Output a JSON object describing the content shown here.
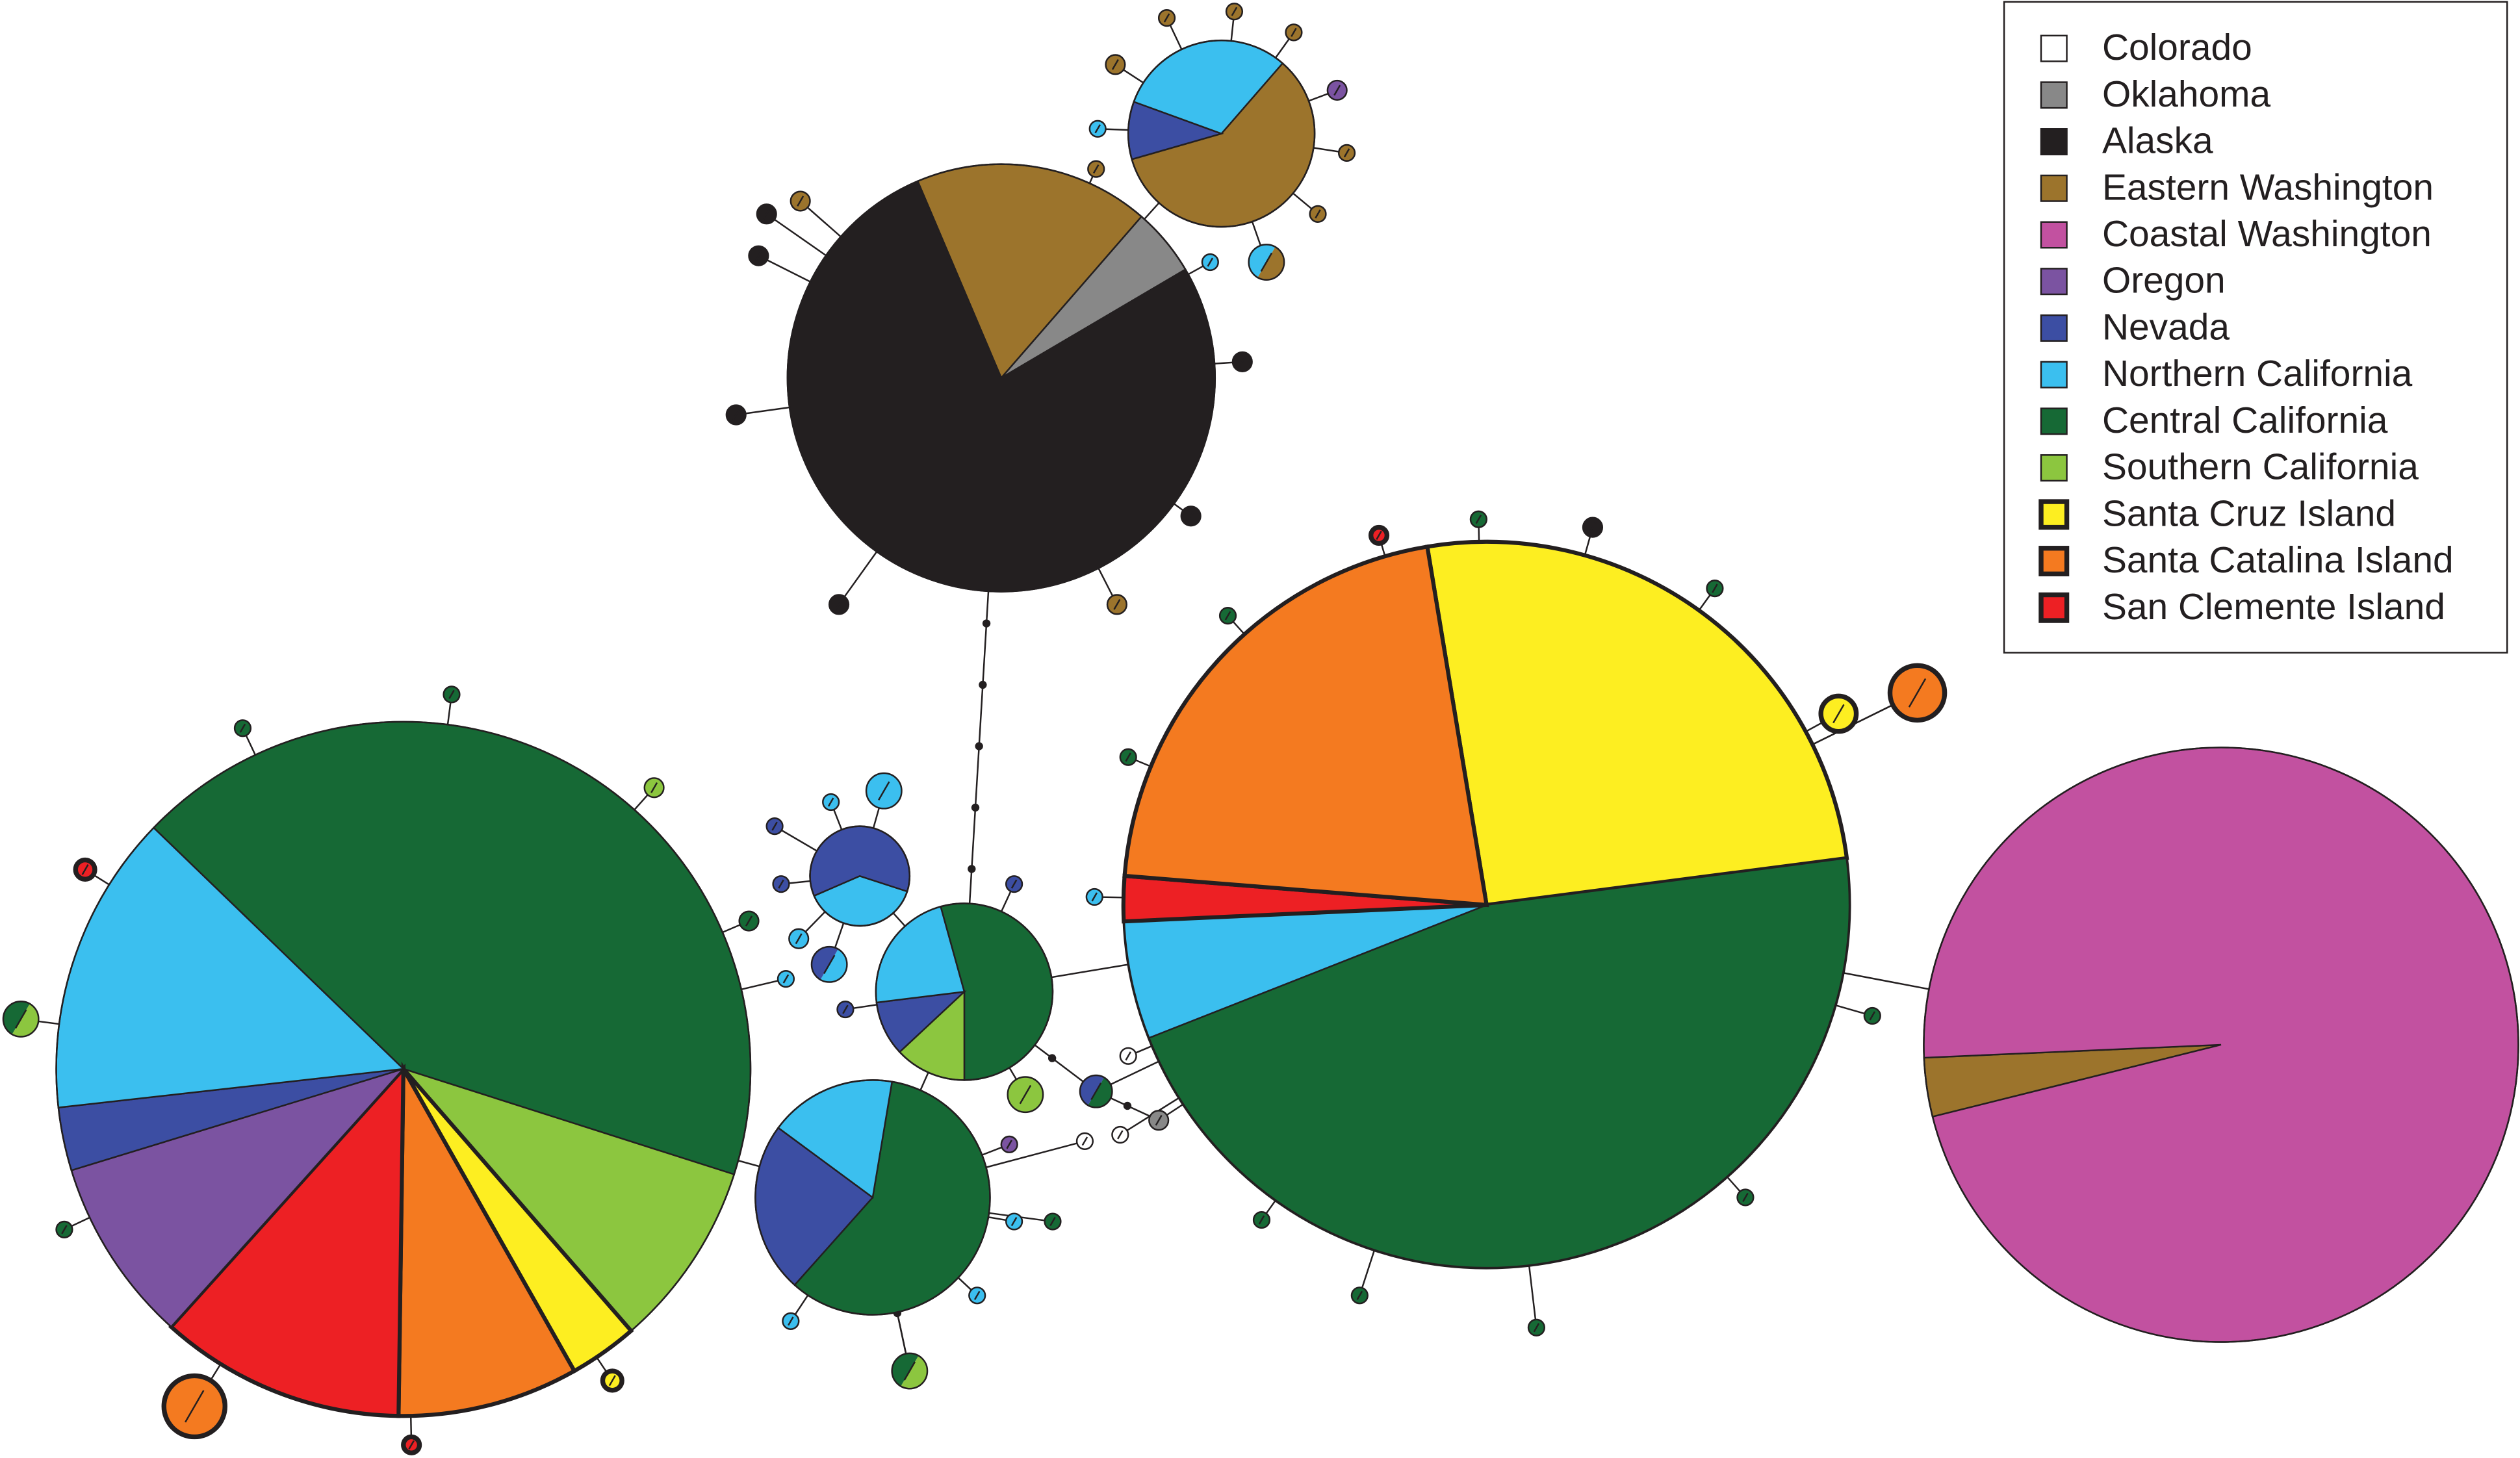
{
  "legend": {
    "items": [
      {
        "label": "Colorado",
        "color": "#ffffff",
        "outline": "thin"
      },
      {
        "label": "Oklahoma",
        "color": "#888888",
        "outline": "thin"
      },
      {
        "label": "Alaska",
        "color": "#231f20",
        "outline": "thin"
      },
      {
        "label": "Eastern Washington",
        "color": "#9c742c",
        "outline": "thin"
      },
      {
        "label": "Coastal Washington",
        "color": "#c251a0",
        "outline": "thin"
      },
      {
        "label": "Oregon",
        "color": "#7b53a1",
        "outline": "thin"
      },
      {
        "label": "Nevada",
        "color": "#3c4ea3",
        "outline": "thin"
      },
      {
        "label": "Northern California",
        "color": "#3bbfef",
        "outline": "thin"
      },
      {
        "label": "Central California",
        "color": "#166935",
        "outline": "thin"
      },
      {
        "label": "Southern California",
        "color": "#8cc63f",
        "outline": "thin"
      },
      {
        "label": "Santa Cruz Island",
        "color": "#fdee21",
        "outline": "thick"
      },
      {
        "label": "Santa Catalina Island",
        "color": "#f47a20",
        "outline": "thick"
      },
      {
        "label": "San Clemente Island",
        "color": "#ed2024",
        "outline": "thick"
      }
    ]
  }
}
